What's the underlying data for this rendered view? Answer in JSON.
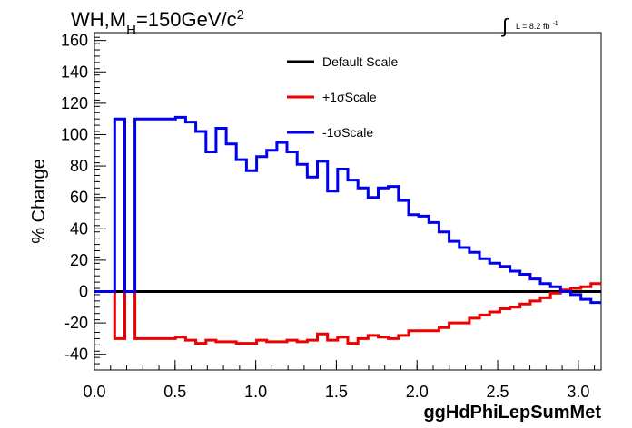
{
  "chart_data": {
    "type": "line",
    "step": true,
    "title": "WH,M_H=150GeV/c^2",
    "title_parts": {
      "main": "WH,M",
      "sub": "H",
      "rest": "=150GeV/c",
      "sup": "2"
    },
    "lumi": {
      "integral": "∫",
      "text": "L = 8.2 fb",
      "sup": "-1"
    },
    "xlabel": "ggHdPhiLepSumMet",
    "ylabel": "% Change",
    "xlim": [
      0,
      3.1416
    ],
    "ylim": [
      -50,
      165
    ],
    "xticks": [
      0.0,
      0.5,
      1.0,
      1.5,
      2.0,
      2.5,
      3.0
    ],
    "xtick_labels": [
      "0.0",
      "0.5",
      "1.0",
      "1.5",
      "2.0",
      "2.5",
      "3.0"
    ],
    "yticks": [
      -40,
      -20,
      0,
      20,
      40,
      60,
      80,
      100,
      120,
      140,
      160
    ],
    "ytick_labels": [
      "-40",
      "-20",
      "0",
      "20",
      "40",
      "60",
      "80",
      "100",
      "120",
      "140",
      "160"
    ],
    "grid": false,
    "legend_position": "top-center",
    "bin_width": 0.0628,
    "x": [
      0.0,
      0.0628,
      0.1257,
      0.1885,
      0.2513,
      0.3142,
      0.377,
      0.4398,
      0.5027,
      0.5655,
      0.6283,
      0.6912,
      0.754,
      0.8168,
      0.8796,
      0.9425,
      1.0053,
      1.0681,
      1.131,
      1.1938,
      1.2566,
      1.3195,
      1.3823,
      1.4451,
      1.508,
      1.5708,
      1.6336,
      1.6965,
      1.7593,
      1.8221,
      1.885,
      1.9478,
      2.0106,
      2.0735,
      2.1363,
      2.1991,
      2.2619,
      2.3248,
      2.3876,
      2.4504,
      2.5133,
      2.5761,
      2.6389,
      2.7018,
      2.7646,
      2.8274,
      2.8903,
      2.9531,
      3.0159,
      3.0788
    ],
    "series": [
      {
        "name": "Default Scale",
        "color": "#000000",
        "values": [
          0,
          0,
          0,
          0,
          0,
          0,
          0,
          0,
          0,
          0,
          0,
          0,
          0,
          0,
          0,
          0,
          0,
          0,
          0,
          0,
          0,
          0,
          0,
          0,
          0,
          0,
          0,
          0,
          0,
          0,
          0,
          0,
          0,
          0,
          0,
          0,
          0,
          0,
          0,
          0,
          0,
          0,
          0,
          0,
          0,
          0,
          0,
          0,
          0,
          0
        ]
      },
      {
        "name": "+1σScale",
        "color": "#ee0000",
        "values": [
          0,
          0,
          -30,
          0,
          -30,
          -30,
          -30,
          -30,
          -29,
          -31,
          -33,
          -31,
          -32,
          -32,
          -33,
          -33,
          -31,
          -32,
          -32,
          -31,
          -32,
          -31,
          -27,
          -31,
          -29,
          -33,
          -30,
          -28,
          -29,
          -30,
          -28,
          -25,
          -25,
          -25,
          -23,
          -20,
          -20,
          -17,
          -15,
          -13,
          -11,
          -10,
          -8,
          -6,
          -4,
          -1,
          1,
          2,
          3,
          5
        ]
      },
      {
        "name": "-1σScale",
        "color": "#0000ee",
        "values": [
          0,
          0,
          110,
          0,
          110,
          110,
          110,
          110,
          111,
          108,
          102,
          89,
          104,
          94,
          84,
          77,
          86,
          90,
          95,
          89,
          81,
          73,
          83,
          64,
          78,
          71,
          66,
          60,
          66,
          67,
          58,
          49,
          48,
          44,
          38,
          32,
          28,
          25,
          21,
          18,
          16,
          13,
          11,
          8,
          5,
          3,
          0,
          -2,
          -5,
          -7
        ]
      }
    ]
  }
}
